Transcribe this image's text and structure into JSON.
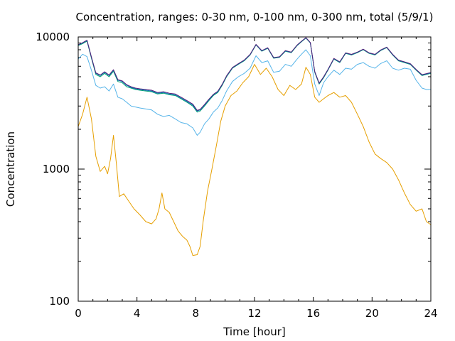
{
  "chart_data": {
    "type": "line",
    "title": "Concentration, ranges: 0-30 nm, 0-100 nm, 0-300 nm, total (5/9/1)",
    "xlabel": "Time [hour]",
    "ylabel": "Concentration",
    "xlim": [
      0,
      24
    ],
    "ylim": [
      100,
      10000
    ],
    "yscale": "log",
    "grid": false,
    "legend": "none",
    "x_ticks": [
      0,
      4,
      8,
      12,
      16,
      20,
      24
    ],
    "x_tick_labels": [
      "0",
      "4",
      "8",
      "12",
      "16",
      "20",
      "24"
    ],
    "y_ticks": [
      100,
      1000,
      10000
    ],
    "y_tick_labels": [
      "100",
      "1000",
      "10000"
    ],
    "series": [
      {
        "color": "#e69f00",
        "x": [
          0,
          0.3,
          0.6,
          0.9,
          1.2,
          1.5,
          1.8,
          2.0,
          2.2,
          2.4,
          2.6,
          2.8,
          3.1,
          3.4,
          3.8,
          4.2,
          4.6,
          5.0,
          5.3,
          5.5,
          5.7,
          5.9,
          6.2,
          6.5,
          6.8,
          7.1,
          7.4,
          7.6,
          7.8,
          8.1,
          8.3,
          8.5,
          8.8,
          9.1,
          9.4,
          9.7,
          10.0,
          10.4,
          10.8,
          11.2,
          11.6,
          12.0,
          12.4,
          12.8,
          13.2,
          13.6,
          14.0,
          14.4,
          14.8,
          15.2,
          15.5,
          15.8,
          16.1,
          16.4,
          16.7,
          17.0,
          17.4,
          17.8,
          18.2,
          18.6,
          19.0,
          19.4,
          19.8,
          20.2,
          20.6,
          21.0,
          21.4,
          21.8,
          22.2,
          22.6,
          23.0,
          23.4,
          23.7,
          24
        ],
        "y": [
          2100,
          2600,
          3500,
          2400,
          1250,
          960,
          1050,
          920,
          1200,
          1800,
          1100,
          620,
          650,
          580,
          500,
          450,
          400,
          385,
          420,
          500,
          660,
          500,
          470,
          400,
          340,
          310,
          290,
          260,
          222,
          225,
          260,
          400,
          680,
          1000,
          1500,
          2300,
          3000,
          3600,
          3900,
          4500,
          5000,
          6200,
          5200,
          5800,
          5000,
          4000,
          3600,
          4300,
          4000,
          4400,
          5900,
          5200,
          3500,
          3200,
          3400,
          3600,
          3800,
          3500,
          3600,
          3200,
          2600,
          2100,
          1600,
          1300,
          1200,
          1120,
          1000,
          830,
          660,
          540,
          480,
          500,
          400,
          380
        ]
      },
      {
        "color": "#56b4e9",
        "x": [
          0,
          0.3,
          0.6,
          0.9,
          1.2,
          1.5,
          1.8,
          2.1,
          2.4,
          2.7,
          3.0,
          3.3,
          3.6,
          3.9,
          4.2,
          4.6,
          5.0,
          5.4,
          5.8,
          6.2,
          6.6,
          7.0,
          7.4,
          7.8,
          8.1,
          8.3,
          8.6,
          8.9,
          9.2,
          9.5,
          9.8,
          10.1,
          10.5,
          10.9,
          11.3,
          11.7,
          12.1,
          12.5,
          12.9,
          13.3,
          13.7,
          14.1,
          14.5,
          14.9,
          15.2,
          15.5,
          15.8,
          16.1,
          16.4,
          16.7,
          17.0,
          17.4,
          17.8,
          18.2,
          18.6,
          19.0,
          19.4,
          19.8,
          20.2,
          20.6,
          21.0,
          21.4,
          21.8,
          22.2,
          22.6,
          23.0,
          23.4,
          23.7,
          24
        ],
        "y": [
          6800,
          7400,
          7100,
          5600,
          4300,
          4100,
          4200,
          3900,
          4400,
          3500,
          3400,
          3200,
          3000,
          2950,
          2900,
          2850,
          2800,
          2600,
          2500,
          2550,
          2400,
          2250,
          2200,
          2050,
          1800,
          1900,
          2200,
          2400,
          2700,
          2900,
          3300,
          3900,
          4600,
          5000,
          5300,
          5800,
          7200,
          6400,
          6600,
          5400,
          5500,
          6200,
          6000,
          6800,
          7400,
          8000,
          7200,
          4400,
          3600,
          4500,
          5000,
          5600,
          5200,
          5800,
          5700,
          6200,
          6400,
          6000,
          5800,
          6300,
          6600,
          5800,
          5600,
          5800,
          5700,
          4700,
          4100,
          4000,
          4000
        ]
      },
      {
        "color": "#009e73",
        "x": [
          0,
          0.3,
          0.6,
          0.9,
          1.2,
          1.5,
          1.8,
          2.1,
          2.4,
          2.7,
          3.0,
          3.3,
          3.6,
          3.9,
          4.2,
          4.6,
          5.0,
          5.4,
          5.8,
          6.2,
          6.6,
          7.0,
          7.4,
          7.8,
          8.1,
          8.3,
          8.6,
          8.9,
          9.2,
          9.5,
          9.8,
          10.1,
          10.5,
          10.9,
          11.3,
          11.7,
          12.1,
          12.5,
          12.9,
          13.3,
          13.7,
          14.1,
          14.5,
          14.9,
          15.2,
          15.5,
          15.8,
          16.1,
          16.4,
          16.7,
          17.0,
          17.4,
          17.8,
          18.2,
          18.6,
          19.0,
          19.4,
          19.8,
          20.2,
          20.6,
          21.0,
          21.4,
          21.8,
          22.2,
          22.6,
          23.0,
          23.4,
          23.7,
          24
        ],
        "y": [
          8600,
          8900,
          9300,
          6900,
          5200,
          5000,
          5300,
          5000,
          5500,
          4600,
          4500,
          4200,
          4100,
          4000,
          3950,
          3900,
          3850,
          3700,
          3750,
          3650,
          3600,
          3400,
          3200,
          3000,
          2700,
          2750,
          3000,
          3300,
          3600,
          3800,
          4300,
          5000,
          5800,
          6200,
          6600,
          7300,
          8700,
          7800,
          8200,
          6900,
          7000,
          7800,
          7600,
          8600,
          9200,
          9800,
          9000,
          5400,
          4400,
          4900,
          5600,
          6800,
          6400,
          7500,
          7300,
          7600,
          8000,
          7500,
          7300,
          7900,
          8300,
          7300,
          6600,
          6400,
          6200,
          5600,
          5100,
          5200,
          5300
        ]
      },
      {
        "color": "#0072b2",
        "x": [
          0,
          0.3,
          0.6,
          0.9,
          1.2,
          1.5,
          1.8,
          2.1,
          2.4,
          2.7,
          3.0,
          3.3,
          3.6,
          3.9,
          4.2,
          4.6,
          5.0,
          5.4,
          5.8,
          6.2,
          6.6,
          7.0,
          7.4,
          7.8,
          8.1,
          8.3,
          8.6,
          8.9,
          9.2,
          9.5,
          9.8,
          10.1,
          10.5,
          10.9,
          11.3,
          11.7,
          12.1,
          12.5,
          12.9,
          13.3,
          13.7,
          14.1,
          14.5,
          14.9,
          15.2,
          15.5,
          15.8,
          16.1,
          16.4,
          16.7,
          17.0,
          17.4,
          17.8,
          18.2,
          18.6,
          19.0,
          19.4,
          19.8,
          20.2,
          20.6,
          21.0,
          21.4,
          21.8,
          22.2,
          22.6,
          23.0,
          23.4,
          23.7,
          24
        ],
        "y": [
          8700,
          9000,
          9400,
          7000,
          5300,
          5100,
          5400,
          5100,
          5600,
          4700,
          4600,
          4300,
          4150,
          4050,
          4000,
          3950,
          3900,
          3750,
          3800,
          3700,
          3650,
          3450,
          3250,
          3050,
          2750,
          2800,
          3050,
          3350,
          3650,
          3850,
          4350,
          5050,
          5850,
          6250,
          6650,
          7350,
          8750,
          7850,
          8250,
          6950,
          7050,
          7850,
          7650,
          8650,
          9250,
          9850,
          9050,
          5450,
          4450,
          4950,
          5650,
          6850,
          6450,
          7550,
          7350,
          7650,
          8050,
          7550,
          7350,
          7950,
          8350,
          7350,
          6650,
          6450,
          6250,
          5650,
          5150,
          5250,
          5350
        ]
      },
      {
        "color": "#56207a",
        "x": [
          0,
          0.3,
          0.6,
          0.9,
          1.2,
          1.5,
          1.8,
          2.1,
          2.4,
          2.7,
          3.0,
          3.3,
          3.6,
          3.9,
          4.2,
          4.6,
          5.0,
          5.4,
          5.8,
          6.2,
          6.6,
          7.0,
          7.4,
          7.8,
          8.1,
          8.3,
          8.6,
          8.9,
          9.2,
          9.5,
          9.8,
          10.1,
          10.5,
          10.9,
          11.3,
          11.7,
          12.1,
          12.5,
          12.9,
          13.3,
          13.7,
          14.1,
          14.5,
          14.9,
          15.2,
          15.5,
          15.8,
          16.1,
          16.4,
          16.7,
          17.0,
          17.4,
          17.8,
          18.2,
          18.6,
          19.0,
          19.4,
          19.8,
          20.2,
          20.6,
          21.0,
          21.4,
          21.8,
          22.2,
          22.6,
          23.0,
          23.4,
          23.7,
          24
        ],
        "y": [
          8750,
          9050,
          9450,
          7050,
          5350,
          5150,
          5450,
          5150,
          5650,
          4750,
          4650,
          4350,
          4200,
          4100,
          4050,
          4000,
          3950,
          3800,
          3850,
          3750,
          3700,
          3500,
          3300,
          3100,
          2780,
          2830,
          3080,
          3380,
          3680,
          3880,
          4380,
          5080,
          5880,
          6280,
          6680,
          7380,
          8780,
          7880,
          8280,
          6980,
          7080,
          7880,
          7680,
          8680,
          9280,
          9880,
          9080,
          5480,
          4480,
          4980,
          5680,
          6880,
          6480,
          7580,
          7380,
          7680,
          8080,
          7580,
          7380,
          7980,
          8380,
          7380,
          6680,
          6480,
          6280,
          5680,
          5180,
          5280,
          5380
        ]
      }
    ]
  }
}
